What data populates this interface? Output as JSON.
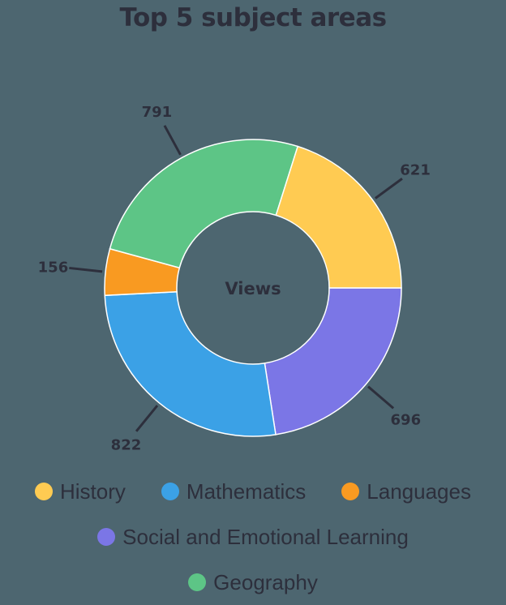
{
  "title": "Top 5 subject areas",
  "chart_data": {
    "type": "pie",
    "subtype": "donut",
    "title": "Top 5 subject areas",
    "center_label": "Views",
    "categories": [
      "History",
      "Mathematics",
      "Languages",
      "Social and Emotional Learning",
      "Geography"
    ],
    "values": [
      621,
      822,
      156,
      696,
      791
    ],
    "colors": {
      "History": "#ffcb52",
      "Mathematics": "#3ba1e6",
      "Languages": "#f99a21",
      "Social and Emotional Learning": "#7b76e6",
      "Geography": "#5dc586"
    },
    "slice_order_clockwise_from_3_oclock": [
      "Social and Emotional Learning",
      "Mathematics",
      "Languages",
      "Geography",
      "History"
    ],
    "legend_position": "bottom",
    "data_labels": true
  },
  "legend": {
    "rows": [
      [
        {
          "label": "History",
          "color": "#ffcb52"
        },
        {
          "label": "Mathematics",
          "color": "#3ba1e6"
        },
        {
          "label": "Languages",
          "color": "#f99a21"
        }
      ],
      [
        {
          "label": "Social and Emotional Learning",
          "color": "#7b76e6"
        }
      ],
      [
        {
          "label": "Geography",
          "color": "#5dc586"
        }
      ]
    ]
  }
}
